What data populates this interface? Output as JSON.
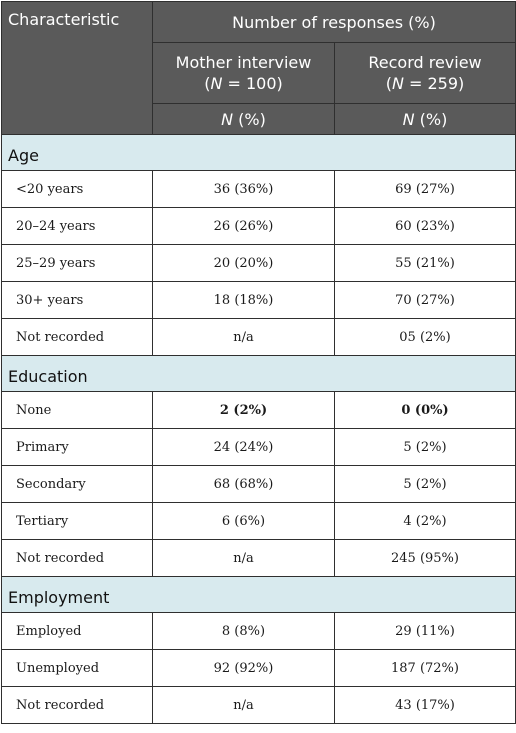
{
  "header": {
    "characteristic": "Characteristic",
    "number_of_responses": "Number of responses (%)",
    "mother_interview": "Mother interview",
    "mother_n_prefix": "(",
    "mother_n_letter": "N",
    "mother_n_value": " = 100)",
    "record_review": "Record review",
    "record_n_prefix": "(",
    "record_n_letter": "N",
    "record_n_value": " = 259)",
    "n_pct_letter": "N",
    "n_pct_suffix": " (%)"
  },
  "sections": [
    {
      "title": "Age",
      "rows": [
        {
          "label": "<20 years",
          "mother": "36 (36%)",
          "record": "69 (27%)"
        },
        {
          "label": "20–24 years",
          "mother": "26 (26%)",
          "record": "60 (23%)"
        },
        {
          "label": "25–29 years",
          "mother": "20 (20%)",
          "record": "55 (21%)"
        },
        {
          "label": "30+ years",
          "mother": "18 (18%)",
          "record": "70 (27%)"
        },
        {
          "label": "Not recorded",
          "mother": "n/a",
          "record": "05 (2%)"
        }
      ]
    },
    {
      "title": "Education",
      "rows": [
        {
          "label": "None",
          "mother": "2 (2%)",
          "record": "0 (0%)"
        },
        {
          "label": "Primary",
          "mother": "24 (24%)",
          "record": "5 (2%)"
        },
        {
          "label": "Secondary",
          "mother": "68 (68%)",
          "record": "5 (2%)"
        },
        {
          "label": "Tertiary",
          "mother": "6 (6%)",
          "record": "4 (2%)"
        },
        {
          "label": "Not recorded",
          "mother": "n/a",
          "record": "245 (95%)"
        }
      ]
    },
    {
      "title": "Employment",
      "rows": [
        {
          "label": "Employed",
          "mother": "8 (8%)",
          "record": "29 (11%)"
        },
        {
          "label": "Unemployed",
          "mother": "92 (92%)",
          "record": "187 (72%)"
        },
        {
          "label": "Not recorded",
          "mother": "n/a",
          "record": "43 (17%)"
        }
      ]
    }
  ]
}
